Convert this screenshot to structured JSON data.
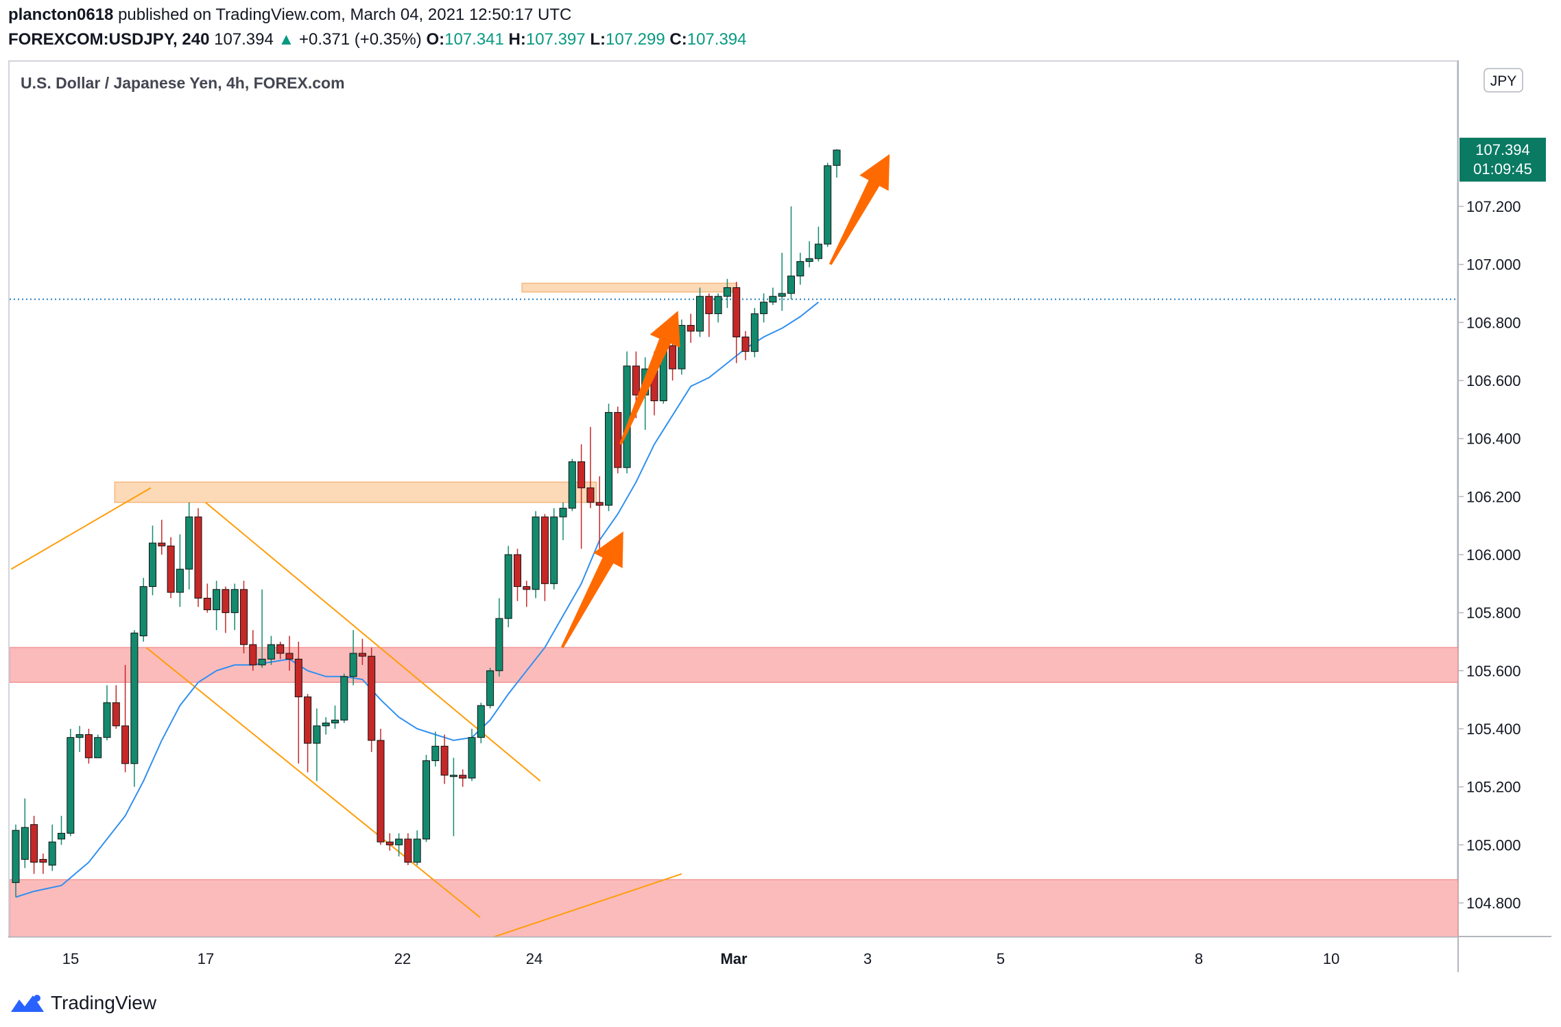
{
  "header": {
    "author": "plancton0618",
    "published_text": "published on TradingView.com, March 04, 2021 12:50:17 UTC",
    "symbol": "FOREXCOM:USDJPY, 240",
    "last_price": "107.394",
    "change_arrow": "▲",
    "change": "+0.371 (+0.35%)",
    "o_label": "O:",
    "o_value": "107.341",
    "h_label": "H:",
    "h_value": "107.397",
    "l_label": "L:",
    "l_value": "107.299",
    "c_label": "C:",
    "c_value": "107.394"
  },
  "chart_title": "U.S. Dollar / Japanese Yen, 4h, FOREX.com",
  "currency_button": "JPY",
  "price_badge": {
    "price": "107.394",
    "countdown": "01:09:45"
  },
  "footer": {
    "brand": "TradingView"
  },
  "colors": {
    "up": "#138a6e",
    "down": "#c62828",
    "ma": "#2f8ff0",
    "support_zone": "#fbb4b4",
    "resistance_zone": "#fcd5b0",
    "trendline": "#ff9d0a",
    "arrow": "#ff6a00",
    "badge": "#0a7a63"
  },
  "chart_data": {
    "type": "candlestick",
    "title": "U.S. Dollar / Japanese Yen, 4h, FOREX.com",
    "ylim": [
      104.68,
      107.6
    ],
    "y_ticks": [
      "104.800",
      "105.000",
      "105.200",
      "105.400",
      "105.600",
      "105.800",
      "106.000",
      "106.200",
      "106.400",
      "106.600",
      "106.800",
      "107.000",
      "107.200"
    ],
    "x_ticks": [
      "15",
      "17",
      "22",
      "24",
      "Mar",
      "3",
      "5",
      "8",
      "10"
    ],
    "zones": [
      {
        "kind": "support",
        "from": 104.68,
        "to": 104.88
      },
      {
        "kind": "support",
        "from": 105.56,
        "to": 105.68
      },
      {
        "kind": "resistance",
        "from": 106.18,
        "to": 106.25,
        "x_from": 10.85,
        "x_to": 63.65
      },
      {
        "kind": "resistance",
        "from": 106.905,
        "to": 106.935,
        "x_from": 55.5,
        "x_to": 79.05
      }
    ],
    "hline": 106.88,
    "candles": [
      [
        104.87,
        105.05,
        105.07,
        104.82
      ],
      [
        104.95,
        105.06,
        105.16,
        104.92
      ],
      [
        105.07,
        104.94,
        105.1,
        104.9
      ],
      [
        104.95,
        104.94,
        104.97,
        104.9
      ],
      [
        104.93,
        105.01,
        105.07,
        104.91
      ],
      [
        105.02,
        105.04,
        105.1,
        105.0
      ],
      [
        105.04,
        105.37,
        105.4,
        105.03
      ],
      [
        105.37,
        105.38,
        105.41,
        105.32
      ],
      [
        105.38,
        105.3,
        105.4,
        105.28
      ],
      [
        105.3,
        105.37,
        105.38,
        105.3
      ],
      [
        105.37,
        105.49,
        105.55,
        105.36
      ],
      [
        105.49,
        105.41,
        105.55,
        105.4
      ],
      [
        105.41,
        105.28,
        105.62,
        105.25
      ],
      [
        105.28,
        105.73,
        105.74,
        105.2
      ],
      [
        105.72,
        105.89,
        105.92,
        105.7
      ],
      [
        105.89,
        106.04,
        106.1,
        105.86
      ],
      [
        106.04,
        106.03,
        106.12,
        106.0
      ],
      [
        106.03,
        105.87,
        106.06,
        105.85
      ],
      [
        105.87,
        105.95,
        106.07,
        105.82
      ],
      [
        105.95,
        106.13,
        106.18,
        105.88
      ],
      [
        106.13,
        105.85,
        106.16,
        105.82
      ],
      [
        105.85,
        105.81,
        105.9,
        105.8
      ],
      [
        105.81,
        105.88,
        105.91,
        105.74
      ],
      [
        105.88,
        105.8,
        105.89,
        105.73
      ],
      [
        105.8,
        105.88,
        105.9,
        105.74
      ],
      [
        105.88,
        105.69,
        105.91,
        105.66
      ],
      [
        105.69,
        105.62,
        105.74,
        105.6
      ],
      [
        105.62,
        105.64,
        105.88,
        105.61
      ],
      [
        105.64,
        105.69,
        105.72,
        105.62
      ],
      [
        105.69,
        105.66,
        105.7,
        105.64
      ],
      [
        105.66,
        105.64,
        105.72,
        105.6
      ],
      [
        105.64,
        105.51,
        105.7,
        105.28
      ],
      [
        105.51,
        105.35,
        105.52,
        105.25
      ],
      [
        105.35,
        105.41,
        105.47,
        105.22
      ],
      [
        105.41,
        105.42,
        105.44,
        105.38
      ],
      [
        105.42,
        105.43,
        105.48,
        105.4
      ],
      [
        105.43,
        105.58,
        105.59,
        105.42
      ],
      [
        105.58,
        105.66,
        105.74,
        105.55
      ],
      [
        105.66,
        105.65,
        105.71,
        105.62
      ],
      [
        105.65,
        105.36,
        105.68,
        105.32
      ],
      [
        105.36,
        105.01,
        105.4,
        105.0
      ],
      [
        105.01,
        105.0,
        105.04,
        104.98
      ],
      [
        105.0,
        105.02,
        105.04,
        104.96
      ],
      [
        105.02,
        104.94,
        105.04,
        104.93
      ],
      [
        104.94,
        105.02,
        105.05,
        104.93
      ],
      [
        105.02,
        105.29,
        105.31,
        105.01
      ],
      [
        105.29,
        105.34,
        105.39,
        105.27
      ],
      [
        105.34,
        105.24,
        105.38,
        105.21
      ],
      [
        105.24,
        105.24,
        105.3,
        105.03
      ],
      [
        105.24,
        105.23,
        105.26,
        105.2
      ],
      [
        105.23,
        105.37,
        105.4,
        105.22
      ],
      [
        105.37,
        105.48,
        105.49,
        105.35
      ],
      [
        105.48,
        105.6,
        105.61,
        105.47
      ],
      [
        105.6,
        105.78,
        105.85,
        105.58
      ],
      [
        105.78,
        106.0,
        106.03,
        105.75
      ],
      [
        106.0,
        105.89,
        106.02,
        105.84
      ],
      [
        105.89,
        105.88,
        105.91,
        105.82
      ],
      [
        105.88,
        106.13,
        106.15,
        105.85
      ],
      [
        106.13,
        105.9,
        106.14,
        105.84
      ],
      [
        105.9,
        106.13,
        106.16,
        105.88
      ],
      [
        106.13,
        106.16,
        106.18,
        106.05
      ],
      [
        106.16,
        106.32,
        106.33,
        106.15
      ],
      [
        106.32,
        106.23,
        106.38,
        106.02
      ],
      [
        106.23,
        106.18,
        106.44,
        106.16
      ],
      [
        106.18,
        106.17,
        106.27,
        106.0
      ],
      [
        106.17,
        106.49,
        106.52,
        106.15
      ],
      [
        106.49,
        106.3,
        106.51,
        106.28
      ],
      [
        106.3,
        106.65,
        106.7,
        106.28
      ],
      [
        106.65,
        106.55,
        106.7,
        106.47
      ],
      [
        106.55,
        106.64,
        106.68,
        106.43
      ],
      [
        106.64,
        106.53,
        106.7,
        106.48
      ],
      [
        106.53,
        106.72,
        106.74,
        106.52
      ],
      [
        106.72,
        106.64,
        106.74,
        106.6
      ],
      [
        106.64,
        106.79,
        106.81,
        106.62
      ],
      [
        106.79,
        106.77,
        106.83,
        106.73
      ],
      [
        106.77,
        106.89,
        106.92,
        106.75
      ],
      [
        106.89,
        106.83,
        106.9,
        106.75
      ],
      [
        106.83,
        106.89,
        106.9,
        106.8
      ],
      [
        106.89,
        106.92,
        106.95,
        106.85
      ],
      [
        106.92,
        106.75,
        106.94,
        106.66
      ],
      [
        106.75,
        106.7,
        106.77,
        106.67
      ],
      [
        106.7,
        106.83,
        106.85,
        106.68
      ],
      [
        106.83,
        106.87,
        106.9,
        106.8
      ],
      [
        106.87,
        106.89,
        106.92,
        106.86
      ],
      [
        106.89,
        106.9,
        107.04,
        106.84
      ],
      [
        106.9,
        106.96,
        107.2,
        106.88
      ],
      [
        106.96,
        107.01,
        107.04,
        106.93
      ],
      [
        107.01,
        107.02,
        107.08,
        106.99
      ],
      [
        107.02,
        107.07,
        107.13,
        107.01
      ],
      [
        107.07,
        107.34,
        107.35,
        107.06
      ],
      [
        107.341,
        107.394,
        107.397,
        107.299
      ]
    ],
    "moving_average": [
      [
        0,
        104.82
      ],
      [
        2,
        104.84
      ],
      [
        5,
        104.86
      ],
      [
        8,
        104.94
      ],
      [
        10,
        105.02
      ],
      [
        12,
        105.1
      ],
      [
        14,
        105.22
      ],
      [
        16,
        105.36
      ],
      [
        18,
        105.48
      ],
      [
        20,
        105.56
      ],
      [
        22,
        105.6
      ],
      [
        24,
        105.62
      ],
      [
        26,
        105.62
      ],
      [
        28,
        105.63
      ],
      [
        30,
        105.64
      ],
      [
        32,
        105.6
      ],
      [
        34,
        105.58
      ],
      [
        36,
        105.58
      ],
      [
        38,
        105.57
      ],
      [
        40,
        105.5
      ],
      [
        42,
        105.44
      ],
      [
        44,
        105.4
      ],
      [
        46,
        105.38
      ],
      [
        48,
        105.36
      ],
      [
        50,
        105.37
      ],
      [
        52,
        105.43
      ],
      [
        54,
        105.52
      ],
      [
        56,
        105.6
      ],
      [
        58,
        105.68
      ],
      [
        60,
        105.79
      ],
      [
        62,
        105.9
      ],
      [
        64,
        106.05
      ],
      [
        66,
        106.14
      ],
      [
        68,
        106.25
      ],
      [
        70,
        106.38
      ],
      [
        72,
        106.48
      ],
      [
        74,
        106.58
      ],
      [
        76,
        106.61
      ],
      [
        78,
        106.66
      ],
      [
        80,
        106.71
      ],
      [
        82,
        106.75
      ],
      [
        84,
        106.78
      ],
      [
        86,
        106.82
      ],
      [
        88,
        106.87
      ]
    ],
    "trendlines": [
      [
        [
          -0.5,
          105.95
        ],
        [
          14.8,
          106.23
        ]
      ],
      [
        [
          14.3,
          105.68
        ],
        [
          50.9,
          104.75
        ]
      ],
      [
        [
          20.8,
          106.18
        ],
        [
          57.5,
          105.22
        ]
      ],
      [
        [
          51.2,
          104.67
        ],
        [
          73.0,
          104.9
        ]
      ]
    ],
    "arrows": [
      [
        [
          59.9,
          105.68
        ],
        [
          66.6,
          106.08
        ]
      ],
      [
        [
          66.3,
          106.38
        ],
        [
          72.6,
          106.84
        ]
      ],
      [
        [
          89.3,
          107.0
        ],
        [
          95.8,
          107.38
        ]
      ]
    ]
  }
}
